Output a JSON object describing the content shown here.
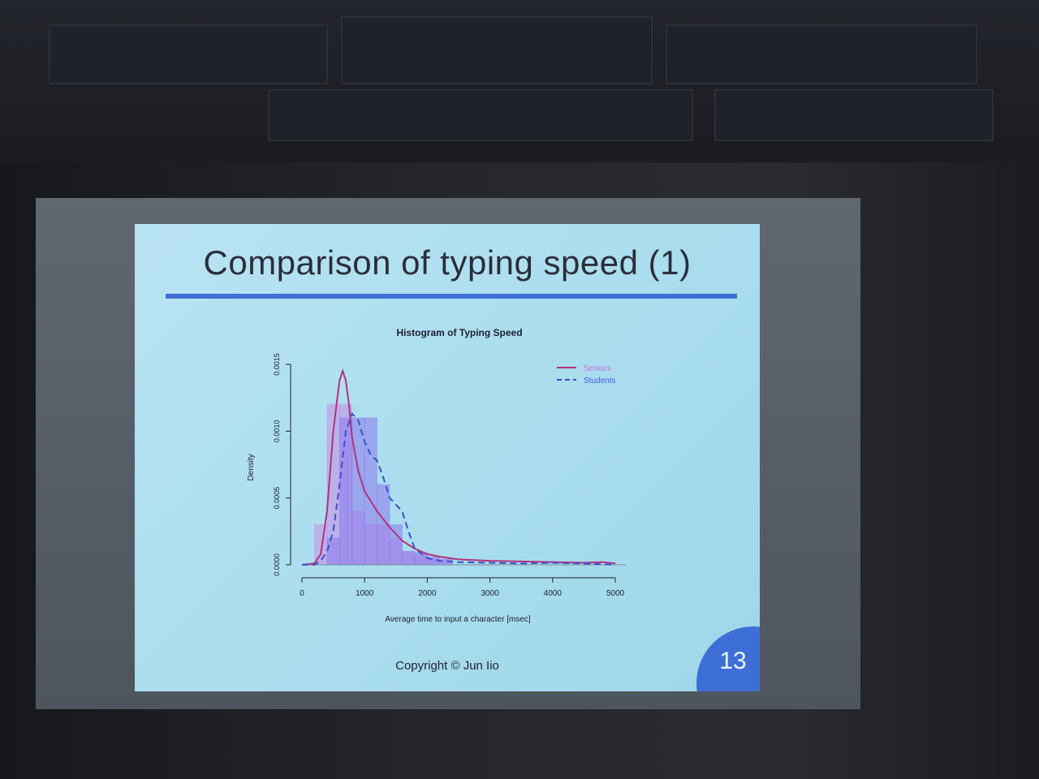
{
  "slide": {
    "title": "Comparison of typing speed (1)",
    "copyright": "Copyright © Jun Iio",
    "page_number": "13",
    "accent_color": "#3d6fd6"
  },
  "chart_data": {
    "type": "histogram",
    "title": "Histogram of Typing Speed",
    "xlabel": "Average time to input a character [msec]",
    "ylabel": "Density",
    "xlim": [
      0,
      5000
    ],
    "ylim": [
      0,
      0.0015
    ],
    "x_ticks": [
      "0",
      "1000",
      "2000",
      "3000",
      "4000",
      "5000"
    ],
    "y_ticks": [
      "0.0000",
      "0.0005",
      "0.0010",
      "0.0015"
    ],
    "legend_position": "top-right",
    "histograms": [
      {
        "name": "Seniors",
        "color": "#c68ce6",
        "bins": [
          [
            200,
            400,
            0.0003
          ],
          [
            400,
            600,
            0.0012
          ],
          [
            600,
            800,
            0.0012
          ],
          [
            800,
            1000,
            0.0004
          ],
          [
            1000,
            1200,
            0.0003
          ],
          [
            1200,
            1400,
            0.0003
          ],
          [
            1400,
            1600,
            0.0002
          ],
          [
            1600,
            1800,
            0.0001
          ],
          [
            1800,
            2000,
            8e-05
          ],
          [
            2000,
            2200,
            5e-05
          ],
          [
            2200,
            2400,
            4e-05
          ]
        ]
      },
      {
        "name": "Students",
        "color": "#8a78ec",
        "bins": [
          [
            400,
            600,
            0.0002
          ],
          [
            600,
            800,
            0.0011
          ],
          [
            800,
            1000,
            0.0011
          ],
          [
            1000,
            1200,
            0.0011
          ],
          [
            1200,
            1400,
            0.0006
          ],
          [
            1400,
            1600,
            0.0003
          ],
          [
            1600,
            1800,
            0.0001
          ],
          [
            1800,
            2000,
            9e-05
          ],
          [
            2000,
            2200,
            6e-05
          ],
          [
            2200,
            2400,
            4e-05
          ]
        ]
      }
    ],
    "series": [
      {
        "name": "Seniors",
        "color": "#b2337a",
        "dash": "solid",
        "x": [
          0,
          200,
          300,
          400,
          500,
          600,
          650,
          700,
          750,
          800,
          900,
          1000,
          1200,
          1400,
          1600,
          1800,
          2000,
          2200,
          2500,
          3000,
          3500,
          4000,
          4500,
          4800,
          5000
        ],
        "y": [
          0,
          1e-05,
          8e-05,
          0.0004,
          0.001,
          0.00138,
          0.00145,
          0.00138,
          0.0012,
          0.00095,
          0.0007,
          0.00055,
          0.0004,
          0.00028,
          0.00018,
          0.00012,
          8e-05,
          6e-05,
          4e-05,
          3e-05,
          2.5e-05,
          2e-05,
          1.5e-05,
          2e-05,
          1e-05
        ]
      },
      {
        "name": "Students",
        "color": "#3b4fd1",
        "dash": "dashed",
        "x": [
          0,
          200,
          300,
          400,
          500,
          600,
          700,
          800,
          900,
          1000,
          1100,
          1200,
          1300,
          1400,
          1500,
          1600,
          1700,
          1800,
          2000,
          2200,
          2500,
          3000,
          3500,
          4000,
          4500,
          5000
        ],
        "y": [
          0,
          0,
          3e-05,
          0.0001,
          0.00025,
          0.0006,
          0.001,
          0.00113,
          0.00108,
          0.00092,
          0.00082,
          0.00078,
          0.00065,
          0.0005,
          0.00045,
          0.0004,
          0.00025,
          0.00012,
          5e-05,
          3e-05,
          2e-05,
          1.5e-05,
          1e-05,
          1.5e-05,
          1e-05,
          0
        ]
      }
    ]
  }
}
